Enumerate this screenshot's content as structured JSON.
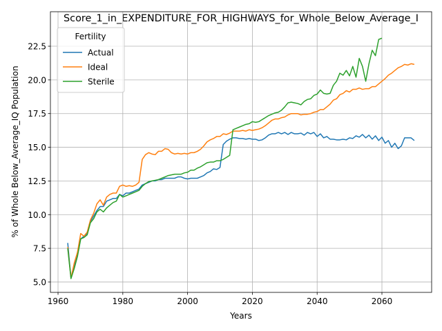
{
  "chart_data": {
    "type": "line",
    "title": "Score_1_in_EXPENDITURE_FOR_HIGHWAYS_for_Whole_Below_Average_I",
    "xlabel": "Years",
    "ylabel": "% of Whole Below_Average_IQ Population",
    "legend_title": "Fertility",
    "legend_loc": "upper left",
    "grid": true,
    "x": [
      1963,
      1964,
      1965,
      1966,
      1967,
      1968,
      1969,
      1970,
      1971,
      1972,
      1973,
      1974,
      1975,
      1976,
      1977,
      1978,
      1979,
      1980,
      1981,
      1982,
      1983,
      1984,
      1985,
      1986,
      1987,
      1988,
      1989,
      1990,
      1991,
      1992,
      1993,
      1994,
      1995,
      1996,
      1997,
      1998,
      1999,
      2000,
      2001,
      2002,
      2003,
      2004,
      2005,
      2006,
      2007,
      2008,
      2009,
      2010,
      2011,
      2012,
      2013,
      2014,
      2015,
      2016,
      2017,
      2018,
      2019,
      2020,
      2021,
      2022,
      2023,
      2024,
      2025,
      2026,
      2027,
      2028,
      2029,
      2030,
      2031,
      2032,
      2033,
      2034,
      2035,
      2036,
      2037,
      2038,
      2039,
      2040,
      2041,
      2042,
      2043,
      2044,
      2045,
      2046,
      2047,
      2048,
      2049,
      2050,
      2051,
      2052,
      2053,
      2054,
      2055,
      2056,
      2057,
      2058,
      2059,
      2060,
      2061,
      2062,
      2063,
      2064,
      2065,
      2066,
      2067,
      2068,
      2069,
      2070
    ],
    "series": [
      {
        "name": "Actual",
        "color": "#1f77b4",
        "values": [
          7.9,
          5.3,
          6.2,
          7.0,
          8.2,
          8.4,
          8.6,
          9.5,
          9.9,
          10.3,
          10.6,
          10.6,
          11.0,
          11.1,
          11.2,
          11.2,
          11.5,
          11.4,
          11.6,
          11.6,
          11.7,
          11.8,
          11.9,
          12.2,
          12.3,
          12.4,
          12.5,
          12.5,
          12.6,
          12.6,
          12.7,
          12.7,
          12.7,
          12.7,
          12.8,
          12.8,
          12.7,
          12.65,
          12.7,
          12.7,
          12.7,
          12.8,
          12.9,
          13.1,
          13.2,
          13.4,
          13.35,
          13.5,
          15.2,
          15.45,
          15.6,
          15.7,
          15.7,
          15.65,
          15.65,
          15.6,
          15.65,
          15.6,
          15.6,
          15.5,
          15.55,
          15.7,
          15.9,
          16.0,
          16.0,
          16.1,
          16.0,
          16.1,
          15.95,
          16.1,
          16.0,
          16.0,
          16.05,
          15.9,
          16.1,
          16.0,
          16.1,
          15.8,
          16.0,
          15.7,
          15.8,
          15.6,
          15.6,
          15.55,
          15.55,
          15.6,
          15.55,
          15.7,
          15.65,
          15.85,
          15.75,
          15.95,
          15.7,
          15.9,
          15.6,
          15.85,
          15.5,
          15.75,
          15.3,
          15.5,
          15.0,
          15.3,
          14.9,
          15.1,
          15.7,
          15.7,
          15.7,
          15.5
        ]
      },
      {
        "name": "Ideal",
        "color": "#ff7f0e",
        "values": [
          7.6,
          5.3,
          6.4,
          7.2,
          8.6,
          8.4,
          8.7,
          9.6,
          10.1,
          10.8,
          11.1,
          10.7,
          11.3,
          11.5,
          11.6,
          11.6,
          12.1,
          12.2,
          12.1,
          12.15,
          12.1,
          12.2,
          12.4,
          14.1,
          14.45,
          14.6,
          14.5,
          14.45,
          14.7,
          14.7,
          14.9,
          14.85,
          14.6,
          14.5,
          14.55,
          14.5,
          14.55,
          14.5,
          14.6,
          14.6,
          14.7,
          14.85,
          15.1,
          15.4,
          15.55,
          15.65,
          15.8,
          15.8,
          16.0,
          15.95,
          16.05,
          16.2,
          16.2,
          16.2,
          16.25,
          16.2,
          16.3,
          16.25,
          16.3,
          16.35,
          16.45,
          16.6,
          16.8,
          17.0,
          17.1,
          17.1,
          17.2,
          17.25,
          17.4,
          17.5,
          17.5,
          17.5,
          17.4,
          17.45,
          17.45,
          17.5,
          17.6,
          17.65,
          17.8,
          17.8,
          18.0,
          18.2,
          18.5,
          18.6,
          18.9,
          19.0,
          19.2,
          19.1,
          19.3,
          19.3,
          19.4,
          19.3,
          19.35,
          19.35,
          19.5,
          19.5,
          19.7,
          19.9,
          20.1,
          20.35,
          20.5,
          20.7,
          20.9,
          21.0,
          21.15,
          21.1,
          21.2,
          21.15
        ]
      },
      {
        "name": "Sterile",
        "color": "#2ca02c",
        "values": [
          7.5,
          5.25,
          6.0,
          6.9,
          8.2,
          8.3,
          8.5,
          9.4,
          9.7,
          10.2,
          10.4,
          10.2,
          10.5,
          10.7,
          10.9,
          11.0,
          11.5,
          11.3,
          11.4,
          11.5,
          11.6,
          11.7,
          11.8,
          12.1,
          12.3,
          12.45,
          12.5,
          12.55,
          12.6,
          12.7,
          12.8,
          12.9,
          12.95,
          13.0,
          13.0,
          13.0,
          13.1,
          13.15,
          13.3,
          13.3,
          13.45,
          13.55,
          13.7,
          13.85,
          13.9,
          13.9,
          14.0,
          14.0,
          14.1,
          14.25,
          14.4,
          16.3,
          16.4,
          16.5,
          16.6,
          16.7,
          16.75,
          16.9,
          16.85,
          16.9,
          17.05,
          17.2,
          17.35,
          17.45,
          17.55,
          17.6,
          17.75,
          18.0,
          18.3,
          18.35,
          18.3,
          18.25,
          18.15,
          18.4,
          18.55,
          18.6,
          18.85,
          18.95,
          19.25,
          19.0,
          18.95,
          19.0,
          19.6,
          19.9,
          20.5,
          20.35,
          20.7,
          20.3,
          21.0,
          20.2,
          21.6,
          21.0,
          19.9,
          21.2,
          22.2,
          21.8,
          23.0,
          23.1,
          null,
          null,
          null,
          null,
          null,
          null,
          null,
          null,
          null,
          null
        ]
      }
    ],
    "xlim": [
      1957.65,
      2075.35
    ],
    "xticks": [
      1960,
      1980,
      2000,
      2020,
      2040,
      2060
    ],
    "ylim": [
      4.23,
      25.06
    ],
    "yticks": [
      {
        "value": 5.0,
        "label": "5.0"
      },
      7.5,
      {
        "value": 10.0,
        "label": "10.0"
      },
      12.5,
      {
        "value": 15.0,
        "label": "15.0"
      },
      17.5,
      {
        "value": 20.0,
        "label": "20.0"
      },
      22.5
    ]
  }
}
